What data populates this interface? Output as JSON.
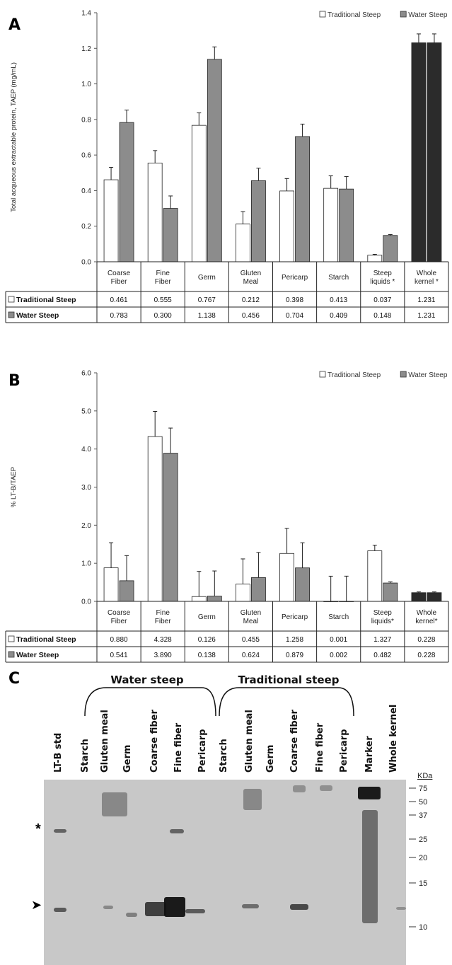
{
  "figure": {
    "panels": {
      "a": "A",
      "b": "B",
      "c": "C"
    }
  },
  "colors": {
    "traditional": "#ffffff",
    "water": "#8c8c8c",
    "whole_kernel": "#2b2b2b",
    "blot_bg": "#c8c8c8"
  },
  "chart_data": [
    {
      "type": "bar",
      "panel": "A",
      "ylabel": "Total acqueous extractable protein, TAEP (mg/mL)",
      "ylim": [
        0,
        1.4
      ],
      "yticks": [
        "0.0",
        "0.2",
        "0.4",
        "0.6",
        "0.8",
        "1.0",
        "1.2",
        "1.4"
      ],
      "legend": [
        "Traditional Steep",
        "Water Steep"
      ],
      "legend_position": "top-right",
      "categories": [
        "Coarse Fiber",
        "Fine Fiber",
        "Germ",
        "Gluten Meal",
        "Pericarp",
        "Starch",
        "Steep liquids *",
        "Whole kernel *"
      ],
      "series": [
        {
          "name": "Traditional Steep",
          "values": [
            0.461,
            0.555,
            0.767,
            0.212,
            0.398,
            0.413,
            0.037,
            1.231
          ],
          "labels": [
            "0.461",
            "0.555",
            "0.767",
            "0.212",
            "0.398",
            "0.413",
            "0.037",
            "1.231"
          ],
          "errors": [
            0.07,
            0.07,
            0.07,
            0.07,
            0.07,
            0.07,
            0.005,
            0.05
          ]
        },
        {
          "name": "Water Steep",
          "values": [
            0.783,
            0.3,
            1.138,
            0.456,
            0.704,
            0.409,
            0.148,
            1.231
          ],
          "labels": [
            "0.783",
            "0.300",
            "1.138",
            "0.456",
            "0.704",
            "0.409",
            "0.148",
            "1.231"
          ],
          "errors": [
            0.07,
            0.07,
            0.07,
            0.07,
            0.07,
            0.07,
            0.005,
            0.05
          ]
        }
      ],
      "grid": false
    },
    {
      "type": "bar",
      "panel": "B",
      "ylabel": "% LT-B/TAEP",
      "ylim": [
        0,
        6.0
      ],
      "yticks": [
        "0.0",
        "1.0",
        "2.0",
        "3.0",
        "4.0",
        "5.0",
        "6.0"
      ],
      "legend": [
        "Traditional Steep",
        "Water Steep"
      ],
      "legend_position": "top-right",
      "categories": [
        "Coarse Fiber",
        "Fine Fiber",
        "Germ",
        "Gluten Meal",
        "Pericarp",
        "Starch",
        "Steep liquids*",
        "Whole kernel*"
      ],
      "series": [
        {
          "name": "Traditional Steep",
          "values": [
            0.88,
            4.328,
            0.126,
            0.455,
            1.258,
            0.001,
            1.327,
            0.228
          ],
          "labels": [
            "0.880",
            "4.328",
            "0.126",
            "0.455",
            "1.258",
            "0.001",
            "1.327",
            "0.228"
          ],
          "errors": [
            0.66,
            0.66,
            0.66,
            0.66,
            0.66,
            0.66,
            0.15,
            0.02
          ]
        },
        {
          "name": "Water Steep",
          "values": [
            0.541,
            3.89,
            0.138,
            0.624,
            0.879,
            0.002,
            0.482,
            0.228
          ],
          "labels": [
            "0.541",
            "3.890",
            "0.138",
            "0.624",
            "0.879",
            "0.002",
            "0.482",
            "0.228"
          ],
          "errors": [
            0.66,
            0.66,
            0.66,
            0.66,
            0.66,
            0.66,
            0.03,
            0.02
          ]
        }
      ],
      "grid": false
    }
  ],
  "blot": {
    "water_group": "Water steep",
    "traditional_group": "Traditional steep",
    "lanes": [
      "LT-B std",
      "Starch",
      "Gluten meal",
      "Germ",
      "Coarse fiber",
      "Fine fiber",
      "Pericarp",
      "Starch",
      "Gluten meal",
      "Germ",
      "Coarse fiber",
      "Fine fiber",
      "Pericarp",
      "Marker",
      "Whole kernel"
    ],
    "kda_title": "KDa",
    "kda": [
      "75",
      "50",
      "37",
      "25",
      "20",
      "15",
      "10"
    ],
    "star": "*",
    "arrow": "➤"
  }
}
